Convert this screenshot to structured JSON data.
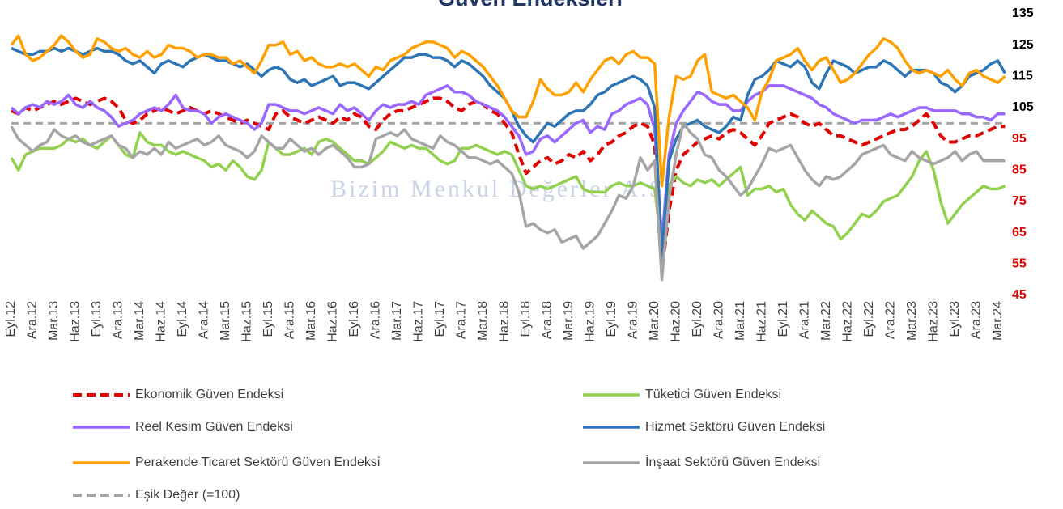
{
  "chart_data": {
    "type": "line",
    "title": "Güven Endeksleri",
    "watermark": "Bizim Menkul Değerler A.Ş.",
    "categories": [
      "Eyl.12",
      null,
      null,
      "Ara.12",
      null,
      null,
      "Mar.13",
      null,
      null,
      "Haz.13",
      null,
      null,
      "Eyl.13",
      null,
      null,
      "Ara.13",
      null,
      null,
      "Mar.14",
      null,
      null,
      "Haz.14",
      null,
      null,
      "Eyl.14",
      null,
      null,
      "Ara.14",
      null,
      null,
      "Mar.15",
      null,
      null,
      "Haz.15",
      null,
      null,
      "Eyl.15",
      null,
      null,
      "Ara.15",
      null,
      null,
      "Mar.16",
      null,
      null,
      "Haz.16",
      null,
      null,
      "Eyl.16",
      null,
      null,
      "Ara.16",
      null,
      null,
      "Mar.17",
      null,
      null,
      "Haz.17",
      null,
      null,
      "Eyl.17",
      null,
      null,
      "Ara.17",
      null,
      null,
      "Mar.18",
      null,
      null,
      "Haz.18",
      null,
      null,
      "Eyl.18",
      null,
      null,
      "Ara.18",
      null,
      null,
      "Mar.19",
      null,
      null,
      "Haz.19",
      null,
      null,
      "Eyl.19",
      null,
      null,
      "Ara.19",
      null,
      null,
      "Mar.20",
      null,
      null,
      "Haz.20",
      null,
      null,
      "Eyl.20",
      null,
      null,
      "Ara.20",
      null,
      null,
      "Mar.21",
      null,
      null,
      "Haz.21",
      null,
      null,
      "Eyl.21",
      null,
      null,
      "Ara.21",
      null,
      null,
      "Mar.22",
      null,
      null,
      "Haz.22",
      null,
      null,
      "Eyl.22",
      null,
      null,
      "Ara.22",
      null,
      null,
      "Mar.23",
      null,
      null,
      "Haz.23",
      null,
      null,
      "Eyl.23",
      null,
      null,
      "Ara.23",
      null,
      null,
      "Mar.24",
      null
    ],
    "ylim": [
      45,
      135
    ],
    "yticks": [
      45,
      55,
      65,
      75,
      85,
      95,
      105,
      115,
      125,
      135
    ],
    "ytick_label_colors": [
      "#e00000",
      "#e00000",
      "#e00000",
      "#e00000",
      "#e00000",
      "#e00000",
      "#000000",
      "#000000",
      "#000000",
      "#000000"
    ],
    "y_axis_side": "right",
    "series": [
      {
        "name": "Ekonomik Güven Endeksi",
        "color": "#e00000",
        "dash": true,
        "values": [
          104,
          103,
          105,
          104,
          105,
          106,
          107,
          106,
          107,
          108,
          107,
          106,
          107,
          108,
          107,
          105,
          101,
          100,
          101,
          103,
          104,
          105,
          104,
          103,
          104,
          105,
          104,
          103,
          104,
          103,
          102,
          101,
          100,
          101,
          100,
          99,
          98,
          103,
          104,
          102,
          101,
          100,
          101,
          102,
          101,
          100,
          102,
          101,
          103,
          102,
          99,
          98,
          101,
          103,
          104,
          104,
          105,
          106,
          107,
          108,
          108,
          107,
          105,
          104,
          106,
          107,
          106,
          104,
          103,
          100,
          97,
          90,
          84,
          86,
          88,
          89,
          87,
          88,
          90,
          89,
          91,
          88,
          90,
          93,
          94,
          96,
          97,
          99,
          100,
          99,
          93,
          52,
          72,
          85,
          90,
          92,
          94,
          95,
          96,
          95,
          97,
          98,
          97,
          95,
          93,
          96,
          100,
          101,
          102,
          103,
          102,
          100,
          99,
          100,
          98,
          96,
          96,
          95,
          94,
          93,
          94,
          95,
          96,
          97,
          98,
          98,
          99,
          101,
          103,
          100,
          96,
          94,
          94,
          95,
          96,
          96,
          97,
          98,
          99,
          99
        ]
      },
      {
        "name": "Tüketici Güven Endeksi",
        "color": "#92d050",
        "dash": false,
        "values": [
          89,
          85,
          90,
          91,
          92,
          92,
          92,
          93,
          95,
          94,
          95,
          93,
          92,
          94,
          96,
          93,
          90,
          89,
          97,
          94,
          93,
          93,
          91,
          90,
          91,
          90,
          89,
          88,
          86,
          87,
          85,
          88,
          86,
          83,
          82,
          85,
          94,
          92,
          90,
          90,
          91,
          92,
          90,
          94,
          95,
          94,
          92,
          90,
          88,
          88,
          87,
          89,
          91,
          94,
          93,
          92,
          93,
          92,
          92,
          90,
          88,
          87,
          88,
          92,
          92,
          93,
          92,
          91,
          90,
          91,
          90,
          85,
          80,
          79,
          80,
          79,
          80,
          81,
          82,
          83,
          79,
          78,
          78,
          78,
          80,
          81,
          80,
          80,
          81,
          80,
          79,
          60,
          80,
          83,
          81,
          80,
          82,
          81,
          82,
          80,
          82,
          84,
          86,
          77,
          79,
          79,
          80,
          78,
          79,
          74,
          71,
          69,
          72,
          70,
          68,
          67,
          63,
          65,
          68,
          71,
          70,
          72,
          75,
          76,
          77,
          80,
          83,
          88,
          91,
          85,
          75,
          68,
          71,
          74,
          76,
          78,
          80,
          79,
          79,
          80
        ]
      },
      {
        "name": "Reel Kesim Güven Endeksi",
        "color": "#9966ff",
        "dash": false,
        "values": [
          105,
          103,
          105,
          106,
          105,
          107,
          106,
          107,
          109,
          106,
          105,
          107,
          105,
          104,
          102,
          99,
          100,
          101,
          103,
          104,
          105,
          104,
          106,
          109,
          105,
          104,
          104,
          103,
          100,
          102,
          103,
          102,
          101,
          100,
          98,
          100,
          106,
          106,
          105,
          104,
          104,
          103,
          104,
          105,
          104,
          103,
          106,
          104,
          105,
          103,
          101,
          104,
          106,
          105,
          106,
          106,
          107,
          106,
          109,
          110,
          111,
          112,
          110,
          110,
          109,
          107,
          106,
          105,
          104,
          102,
          99,
          96,
          90,
          91,
          95,
          96,
          94,
          96,
          98,
          100,
          101,
          97,
          99,
          98,
          103,
          104,
          106,
          107,
          108,
          106,
          98,
          62,
          90,
          100,
          104,
          107,
          110,
          109,
          107,
          106,
          106,
          104,
          104,
          107,
          109,
          110,
          112,
          112,
          112,
          111,
          110,
          109,
          108,
          106,
          105,
          103,
          102,
          101,
          100,
          101,
          101,
          101,
          102,
          103,
          102,
          103,
          104,
          105,
          105,
          104,
          104,
          104,
          104,
          103,
          103,
          102,
          102,
          101,
          103,
          103
        ]
      },
      {
        "name": "Hizmet Sektörü Güven Endeksi",
        "color": "#2e75b6",
        "dash": false,
        "values": [
          124,
          123,
          122,
          122,
          123,
          123,
          124,
          123,
          124,
          123,
          122,
          123,
          124,
          123,
          123,
          122,
          120,
          119,
          120,
          118,
          116,
          119,
          120,
          119,
          118,
          120,
          121,
          122,
          121,
          120,
          120,
          119,
          118,
          119,
          117,
          115,
          117,
          118,
          117,
          114,
          113,
          114,
          112,
          113,
          114,
          115,
          112,
          113,
          113,
          112,
          111,
          113,
          115,
          117,
          119,
          121,
          121,
          122,
          122,
          121,
          121,
          120,
          118,
          120,
          119,
          117,
          115,
          112,
          110,
          108,
          104,
          99,
          96,
          94,
          97,
          100,
          99,
          101,
          103,
          104,
          104,
          106,
          109,
          110,
          112,
          113,
          114,
          115,
          114,
          112,
          105,
          57,
          88,
          95,
          99,
          100,
          101,
          99,
          98,
          97,
          99,
          102,
          101,
          109,
          114,
          115,
          117,
          120,
          119,
          118,
          120,
          118,
          113,
          111,
          116,
          120,
          119,
          118,
          116,
          117,
          118,
          118,
          120,
          119,
          117,
          115,
          117,
          117,
          117,
          116,
          113,
          112,
          110,
          112,
          115,
          116,
          117,
          119,
          120,
          116
        ]
      },
      {
        "name": "Perakende Ticaret Sektörü Güven Endeksi",
        "color": "#ffa000",
        "dash": false,
        "values": [
          125,
          128,
          122,
          120,
          121,
          123,
          125,
          128,
          126,
          123,
          121,
          122,
          127,
          126,
          124,
          123,
          124,
          122,
          121,
          123,
          121,
          122,
          125,
          124,
          124,
          123,
          121,
          122,
          122,
          121,
          121,
          119,
          120,
          118,
          116,
          120,
          125,
          125,
          126,
          122,
          123,
          120,
          121,
          119,
          118,
          118,
          119,
          118,
          119,
          117,
          115,
          118,
          117,
          120,
          121,
          122,
          124,
          125,
          126,
          126,
          125,
          124,
          121,
          123,
          122,
          120,
          118,
          115,
          112,
          108,
          104,
          102,
          102,
          107,
          114,
          111,
          109,
          109,
          110,
          113,
          110,
          114,
          117,
          120,
          121,
          119,
          122,
          123,
          121,
          121,
          119,
          80,
          102,
          115,
          114,
          115,
          120,
          122,
          110,
          109,
          108,
          109,
          107,
          105,
          101,
          110,
          114,
          120,
          121,
          122,
          124,
          120,
          117,
          120,
          121,
          117,
          113,
          114,
          116,
          119,
          122,
          124,
          127,
          126,
          124,
          120,
          117,
          116,
          117,
          116,
          115,
          117,
          114,
          112,
          116,
          117,
          115,
          114,
          113,
          115
        ]
      },
      {
        "name": "İnşaat Sektörü Güven Endeksi",
        "color": "#a5a5a5",
        "dash": false,
        "values": [
          99,
          95,
          93,
          91,
          93,
          94,
          98,
          96,
          95,
          96,
          94,
          93,
          94,
          95,
          96,
          93,
          92,
          89,
          91,
          90,
          92,
          90,
          94,
          92,
          93,
          94,
          95,
          93,
          94,
          96,
          93,
          92,
          91,
          89,
          91,
          96,
          94,
          92,
          92,
          95,
          93,
          91,
          92,
          90,
          92,
          93,
          91,
          89,
          86,
          86,
          87,
          95,
          96,
          97,
          96,
          98,
          95,
          94,
          93,
          92,
          96,
          94,
          93,
          91,
          89,
          89,
          88,
          87,
          88,
          86,
          84,
          78,
          67,
          68,
          66,
          65,
          66,
          62,
          63,
          64,
          60,
          62,
          64,
          68,
          72,
          77,
          76,
          80,
          89,
          85,
          88,
          50,
          76,
          90,
          100,
          97,
          95,
          90,
          89,
          85,
          83,
          80,
          77,
          79,
          83,
          87,
          92,
          91,
          92,
          93,
          89,
          85,
          82,
          80,
          83,
          82,
          83,
          85,
          87,
          90,
          91,
          92,
          93,
          90,
          89,
          88,
          91,
          89,
          88,
          87,
          88,
          89,
          91,
          88,
          90,
          91,
          88,
          88,
          88,
          88
        ]
      }
    ],
    "reference_line": {
      "name": "Eşik Değer (=100)",
      "value": 100,
      "color": "#a5a5a5",
      "dash": true
    }
  }
}
